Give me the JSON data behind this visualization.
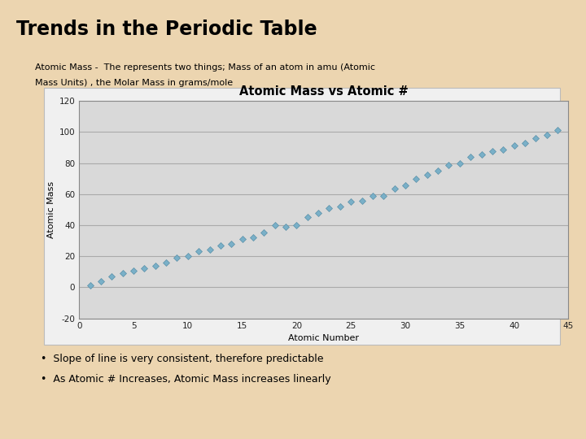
{
  "title": "Trends in the Periodic Table",
  "subtitle_line1": "Atomic Mass -  The represents two things; Mass of an atom in amu (Atomic",
  "subtitle_line2": "Mass Units) , the Molar Mass in grams/mole",
  "chart_title": "Atomic Mass vs Atomic #",
  "xlabel": "Atomic Number",
  "ylabel": "Atomic Mass",
  "bullet1": "Slope of line is very consistent, therefore predictable",
  "bullet2": "As Atomic # Increases, Atomic Mass increases linearly",
  "background_color": "#ecd5b0",
  "chart_panel_color": "#f0f0f0",
  "plot_bg_color": "#d9d9d9",
  "marker_color": "#7ab0c8",
  "marker_edge_color": "#5a90a8",
  "grid_color": "#aaaaaa",
  "spine_color": "#888888",
  "xlim": [
    0,
    45
  ],
  "ylim": [
    -20,
    120
  ],
  "xticks": [
    0,
    5,
    10,
    15,
    20,
    25,
    30,
    35,
    40,
    45
  ],
  "yticks": [
    -20,
    0,
    20,
    40,
    60,
    80,
    100,
    120
  ],
  "atomic_numbers": [
    1,
    2,
    3,
    4,
    5,
    6,
    7,
    8,
    9,
    10,
    11,
    12,
    13,
    14,
    15,
    16,
    17,
    18,
    19,
    20,
    21,
    22,
    23,
    24,
    25,
    26,
    27,
    28,
    29,
    30,
    31,
    32,
    33,
    34,
    35,
    36,
    37,
    38,
    39,
    40,
    41,
    42,
    43,
    44
  ],
  "atomic_masses": [
    1.008,
    4.003,
    6.941,
    9.012,
    10.811,
    12.011,
    14.007,
    15.999,
    18.998,
    20.18,
    22.99,
    24.305,
    26.982,
    28.086,
    30.974,
    32.065,
    35.453,
    39.948,
    39.098,
    40.078,
    44.956,
    47.867,
    50.942,
    51.996,
    54.938,
    55.845,
    58.933,
    58.693,
    63.546,
    65.38,
    69.723,
    72.63,
    74.922,
    78.96,
    79.904,
    83.798,
    85.468,
    87.62,
    88.906,
    91.224,
    92.906,
    95.96,
    98.0,
    101.07
  ]
}
